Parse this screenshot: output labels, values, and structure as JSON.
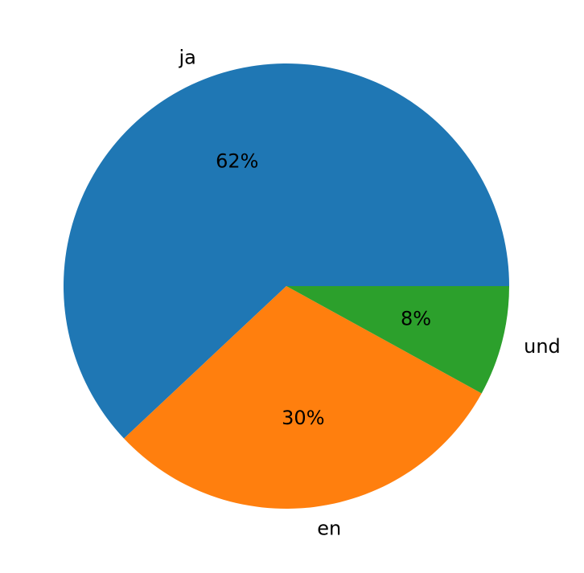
{
  "chart_data": {
    "type": "pie",
    "categories": [
      "ja",
      "en",
      "und"
    ],
    "values": [
      62,
      30,
      8
    ],
    "value_labels": [
      "62%",
      "30%",
      "8%"
    ],
    "colors": [
      "#1f77b4",
      "#ff7f0e",
      "#2ca02c"
    ],
    "start_angle": 0,
    "direction": "counterclockwise"
  }
}
